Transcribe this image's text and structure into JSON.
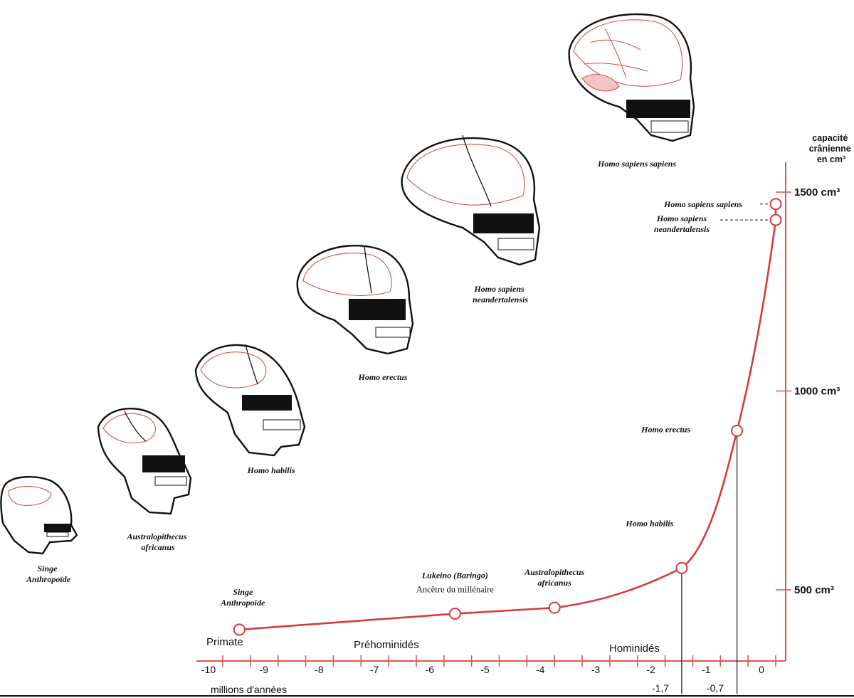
{
  "chart_data": {
    "type": "line",
    "y_title_lines": [
      "capacité",
      "crânienne",
      "en cm³"
    ],
    "xlabel": "millions d'années",
    "x_ticks": [
      -10,
      -9,
      -8,
      -7,
      -6,
      -5,
      -4,
      -3,
      -2,
      -1,
      0
    ],
    "x_ticks_labels": [
      "-10",
      "-9",
      "-8",
      "-7",
      "-6",
      "-5",
      "-4",
      "-3",
      "-2",
      "-1",
      "0"
    ],
    "x_extra_labels": [
      "-1,7",
      "-0,7"
    ],
    "xlim": [
      -10.3,
      0.3
    ],
    "y_ticks_labels": [
      "500 cm³",
      "1000 cm³",
      "1500 cm³"
    ],
    "y_ticks": [
      500,
      1000,
      1500
    ],
    "ylim": [
      300,
      1600
    ],
    "periods": [
      "Primate",
      "Préhominidés",
      "Hominidés"
    ],
    "series": [
      {
        "points": [
          {
            "x": -9.7,
            "y": 400,
            "label_lines": [
              "Singe",
              "Anthropoïde"
            ]
          },
          {
            "x": -5.8,
            "y": 440,
            "label_lines": [
              "Lukeino (Baringo)"
            ],
            "sub_label": "Ancêtre du millénaire"
          },
          {
            "x": -4.0,
            "y": 455,
            "label_lines": [
              "Australopithecus",
              "africanus"
            ]
          },
          {
            "x": -1.7,
            "y": 555,
            "label_lines": [
              "Homo habilis"
            ]
          },
          {
            "x": -0.7,
            "y": 900,
            "label_lines": [
              "Homo erectus"
            ]
          },
          {
            "x": 0.0,
            "y": 1430,
            "label_lines": [
              "Homo sapiens",
              "neandertalensis"
            ]
          },
          {
            "x": 0.0,
            "y": 1470,
            "label_lines": [
              "Homo sapiens sapiens"
            ]
          }
        ]
      }
    ]
  },
  "skulls": [
    {
      "name_lines": [
        "Singe",
        "Anthropoïde"
      ]
    },
    {
      "name_lines": [
        "Australopithecus",
        "africanus"
      ]
    },
    {
      "name_lines": [
        "Homo habilis"
      ]
    },
    {
      "name_lines": [
        "Homo erectus"
      ]
    },
    {
      "name_lines": [
        "Homo sapiens",
        "neandertalensis"
      ]
    },
    {
      "name_lines": [
        "Homo sapiens sapiens"
      ]
    }
  ],
  "colors": {
    "curve": "#d63b3b",
    "axis": "#e05555",
    "ink": "#111111",
    "brain": "#d94f4f"
  }
}
